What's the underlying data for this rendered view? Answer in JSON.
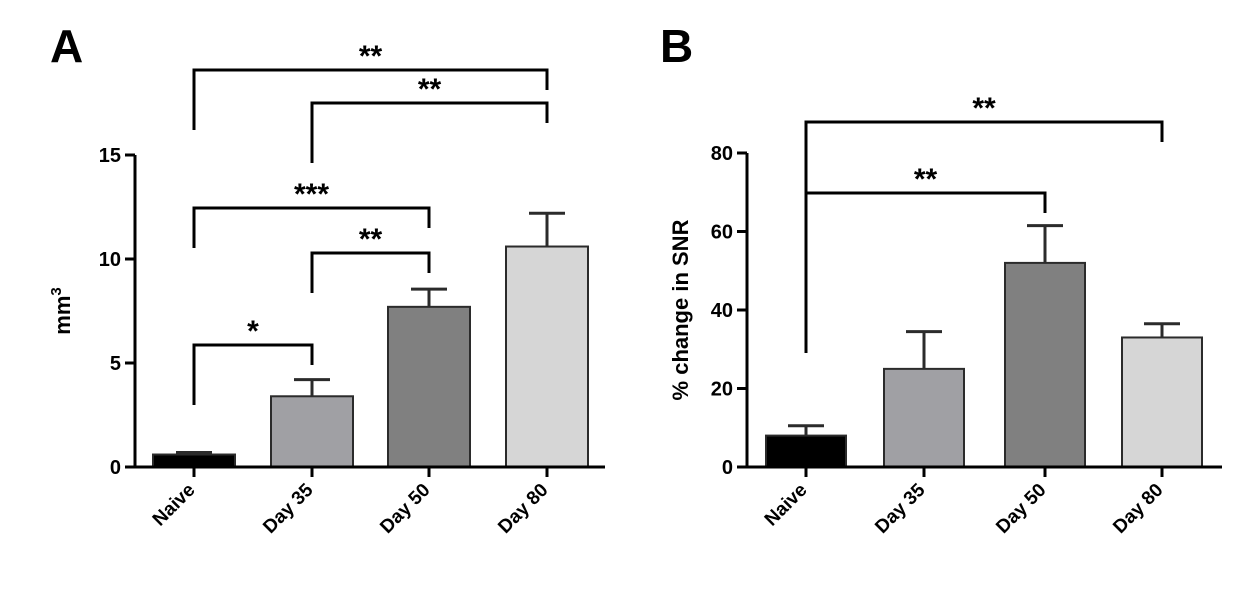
{
  "chart_data": [
    {
      "panel": "A",
      "type": "bar",
      "categories": [
        "Naive",
        "Day 35",
        "Day 50",
        "Day 80"
      ],
      "values": [
        0.6,
        3.4,
        7.7,
        10.6
      ],
      "errors": [
        0.1,
        0.8,
        0.85,
        1.6
      ],
      "colors": [
        "#000000",
        "#a0a0a4",
        "#808080",
        "#d6d6d6"
      ],
      "ylabel": "mm",
      "ylabel_sup": "3",
      "ylim": [
        0,
        15
      ],
      "yticks": [
        0,
        5,
        10,
        15
      ],
      "grid": false,
      "comparisons": [
        {
          "from": "Naive",
          "to": "Day 35",
          "label": "*"
        },
        {
          "from": "Day 35",
          "to": "Day 50",
          "label": "**"
        },
        {
          "from": "Naive",
          "to": "Day 50",
          "label": "***"
        },
        {
          "from": "Day 35",
          "to": "Day 80",
          "label": "**"
        },
        {
          "from": "Naive",
          "to": "Day 80",
          "label": "**"
        }
      ]
    },
    {
      "panel": "B",
      "type": "bar",
      "categories": [
        "Naive",
        "Day 35",
        "Day 50",
        "Day 80"
      ],
      "values": [
        8,
        25,
        52,
        33
      ],
      "errors": [
        2.5,
        9.5,
        9.5,
        3.5
      ],
      "colors": [
        "#000000",
        "#a0a0a4",
        "#808080",
        "#d6d6d6"
      ],
      "ylabel": "% change in SNR",
      "ylim": [
        0,
        80
      ],
      "yticks": [
        0,
        20,
        40,
        60,
        80
      ],
      "grid": false,
      "comparisons": [
        {
          "from": "Naive",
          "to": "Day 50",
          "label": "**"
        },
        {
          "from": "Naive",
          "to": "Day 80",
          "label": "**"
        }
      ]
    }
  ]
}
